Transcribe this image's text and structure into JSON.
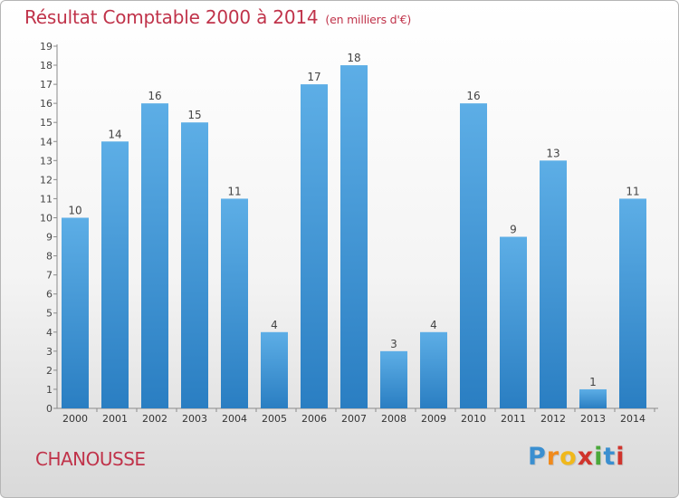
{
  "title": {
    "main": "Résultat Comptable 2000 à 2014",
    "unit": "(en milliers d'€)"
  },
  "commune": "CHANOUSSE",
  "logo": {
    "letters": [
      "P",
      "r",
      "o",
      "x",
      "i",
      "t",
      "i"
    ],
    "colors": [
      "#3a8fd0",
      "#f08a1c",
      "#f0b81c",
      "#d0342c",
      "#4aa83a",
      "#3a8fd0",
      "#d0342c"
    ]
  },
  "chart_data": {
    "type": "bar",
    "title": "Résultat Comptable 2000 à 2014",
    "categories": [
      "2000",
      "2001",
      "2002",
      "2003",
      "2004",
      "2005",
      "2006",
      "2007",
      "2008",
      "2009",
      "2010",
      "2011",
      "2012",
      "2013",
      "2014"
    ],
    "values": [
      10,
      14,
      16,
      15,
      11,
      4,
      17,
      18,
      3,
      4,
      16,
      9,
      13,
      1,
      11
    ],
    "data_labels": [
      "10",
      "14",
      "16",
      "15",
      "11",
      "4",
      "17",
      "18",
      "3",
      "4",
      "16",
      "9",
      "13",
      "1",
      "11"
    ],
    "y_ticks": [
      "0",
      "1",
      "2",
      "3",
      "4",
      "5",
      "6",
      "7",
      "8",
      "9",
      "10",
      "11",
      "12",
      "13",
      "14",
      "15",
      "16",
      "17",
      "18",
      "19"
    ],
    "ylim": [
      0,
      19
    ],
    "grid": false,
    "bar_color_top": "#5daee6",
    "bar_color_bottom": "#2a7ec2"
  }
}
